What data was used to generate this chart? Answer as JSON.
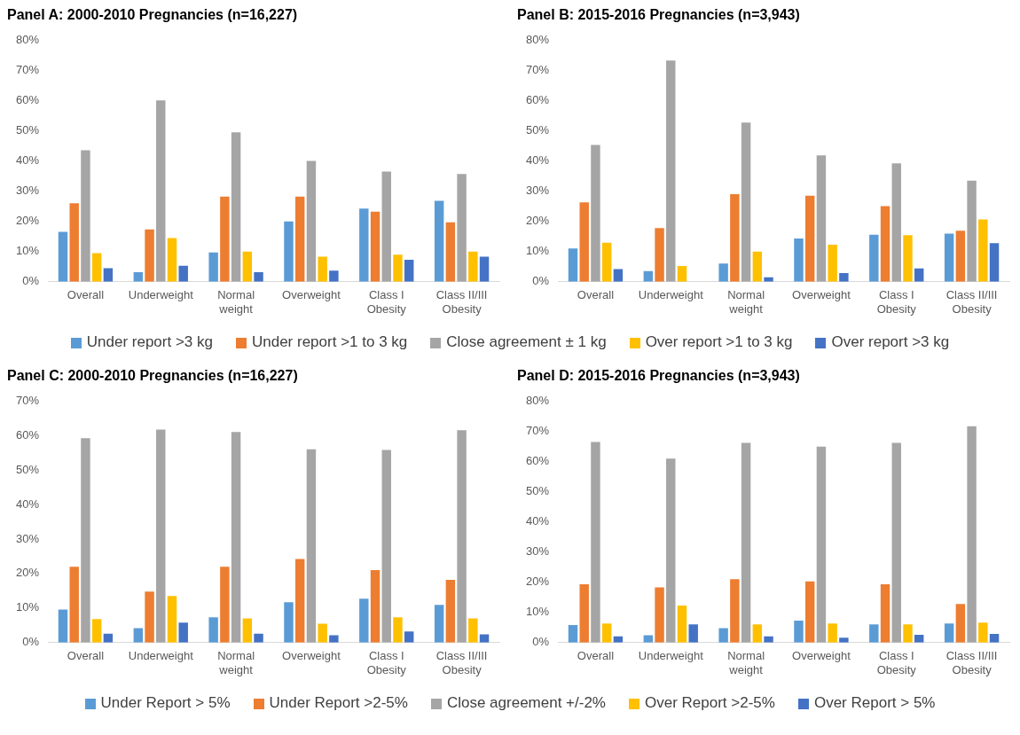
{
  "chart_data": [
    {
      "type": "bar",
      "title": "Panel A: 2000-2010 Pregnancies (n=16,227)",
      "categories": [
        "Overall",
        "Underweight",
        "Normal weight",
        "Overweight",
        "Class I Obesity",
        "Class II/III Obesity"
      ],
      "ylim": [
        0,
        80
      ],
      "yticks": [
        {
          "value": 0,
          "label": "0%"
        },
        {
          "value": 10,
          "label": "10%"
        },
        {
          "value": 20,
          "label": "20%"
        },
        {
          "value": 30,
          "label": "30%"
        },
        {
          "value": 40,
          "label": "40%"
        },
        {
          "value": 50,
          "label": "50%"
        },
        {
          "value": 60,
          "label": "60%"
        },
        {
          "value": 70,
          "label": "70%"
        },
        {
          "value": 80,
          "label": "80%"
        }
      ],
      "grid": false,
      "legend": "bottom",
      "series": [
        {
          "name": "Under report >3 kg",
          "color": "#5b9bd5",
          "values": [
            16.5,
            3.2,
            9.7,
            20,
            24.2,
            26.8
          ]
        },
        {
          "name": "Under report >1 to 3 kg",
          "color": "#ed7d31",
          "values": [
            26,
            17.3,
            28.2,
            28.2,
            23.2,
            19.7
          ]
        },
        {
          "name": "Close agreement ± 1 kg",
          "color": "#a5a5a5",
          "values": [
            43.5,
            60,
            49.5,
            40,
            36.5,
            35.7
          ]
        },
        {
          "name": "Over report >1 to 3 kg",
          "color": "#ffc000",
          "values": [
            9.5,
            14.5,
            10,
            8.3,
            9,
            10
          ]
        },
        {
          "name": "Over report >3 kg",
          "color": "#4472c4",
          "values": [
            4.5,
            5.3,
            3.2,
            3.7,
            7.3,
            8.3
          ]
        }
      ]
    },
    {
      "type": "bar",
      "title": "Panel B: 2015-2016 Pregnancies (n=3,943)",
      "categories": [
        "Overall",
        "Underweight",
        "Normal weight",
        "Overweight",
        "Class I Obesity",
        "Class II/III Obesity"
      ],
      "ylim": [
        0,
        80
      ],
      "yticks": [
        {
          "value": 0,
          "label": "0%"
        },
        {
          "value": 10,
          "label": "10%"
        },
        {
          "value": 20,
          "label": "20%"
        },
        {
          "value": 30,
          "label": "30%"
        },
        {
          "value": 40,
          "label": "40%"
        },
        {
          "value": 50,
          "label": "50%"
        },
        {
          "value": 60,
          "label": "60%"
        },
        {
          "value": 70,
          "label": "70%"
        },
        {
          "value": 80,
          "label": "80%"
        }
      ],
      "grid": false,
      "series": [
        {
          "color": "#5b9bd5",
          "values": [
            11,
            3.5,
            6,
            14.3,
            15.6,
            15.9
          ]
        },
        {
          "color": "#ed7d31",
          "values": [
            26.3,
            17.8,
            29,
            28.5,
            25,
            16.9
          ]
        },
        {
          "color": "#a5a5a5",
          "values": [
            45.3,
            73.2,
            52.7,
            41.8,
            39.2,
            33.5
          ]
        },
        {
          "color": "#ffc000",
          "values": [
            12.9,
            5.2,
            10,
            12.3,
            15.4,
            20.6
          ]
        },
        {
          "color": "#4472c4",
          "values": [
            4.2,
            0,
            1.5,
            2.9,
            4.4,
            12.8
          ]
        }
      ]
    },
    {
      "type": "bar",
      "title": "Panel C: 2000-2010 Pregnancies (n=16,227)",
      "categories": [
        "Overall",
        "Underweight",
        "Normal weight",
        "Overweight",
        "Class I Obesity",
        "Class II/III Obesity"
      ],
      "ylim": [
        0,
        70
      ],
      "yticks": [
        {
          "value": 0,
          "label": "0%"
        },
        {
          "value": 10,
          "label": "10%"
        },
        {
          "value": 20,
          "label": "20%"
        },
        {
          "value": 30,
          "label": "30%"
        },
        {
          "value": 40,
          "label": "40%"
        },
        {
          "value": 50,
          "label": "50%"
        },
        {
          "value": 60,
          "label": "60%"
        },
        {
          "value": 70,
          "label": "70%"
        }
      ],
      "grid": false,
      "legend": "bottom",
      "series": [
        {
          "name": "Under Report > 5%",
          "color": "#5b9bd5",
          "values": [
            9.6,
            4.2,
            7.3,
            11.7,
            12.7,
            10.9
          ]
        },
        {
          "name": "Under Report >2-5%",
          "color": "#ed7d31",
          "values": [
            22,
            14.8,
            22,
            24.2,
            21,
            18.2
          ]
        },
        {
          "name": "Close agreement +/-2%",
          "color": "#a5a5a5",
          "values": [
            59.2,
            61.7,
            61,
            56,
            55.8,
            61.5
          ]
        },
        {
          "name": "Over Report >2-5%",
          "color": "#ffc000",
          "values": [
            6.8,
            13.5,
            7,
            5.5,
            7.3,
            7
          ]
        },
        {
          "name": "Over Report > 5%",
          "color": "#4472c4",
          "values": [
            2.6,
            5.8,
            2.6,
            2.1,
            3.2,
            2.4
          ]
        }
      ]
    },
    {
      "type": "bar",
      "title": "Panel D: 2015-2016 Pregnancies (n=3,943)",
      "categories": [
        "Overall",
        "Underweight",
        "Normal weight",
        "Overweight",
        "Class I Obesity",
        "Class II/III Obesity"
      ],
      "ylim": [
        0,
        80
      ],
      "yticks": [
        {
          "value": 0,
          "label": "0%"
        },
        {
          "value": 10,
          "label": "10%"
        },
        {
          "value": 20,
          "label": "20%"
        },
        {
          "value": 30,
          "label": "30%"
        },
        {
          "value": 40,
          "label": "40%"
        },
        {
          "value": 50,
          "label": "50%"
        },
        {
          "value": 60,
          "label": "60%"
        },
        {
          "value": 70,
          "label": "70%"
        },
        {
          "value": 80,
          "label": "80%"
        }
      ],
      "grid": false,
      "series": [
        {
          "color": "#5b9bd5",
          "values": [
            5.8,
            2.4,
            4.8,
            7.3,
            6,
            6.3
          ]
        },
        {
          "color": "#ed7d31",
          "values": [
            19.3,
            18.3,
            21,
            20.3,
            19.3,
            12.8
          ]
        },
        {
          "color": "#a5a5a5",
          "values": [
            66.4,
            60.9,
            66.1,
            64.9,
            66.1,
            71.6
          ]
        },
        {
          "color": "#ffc000",
          "values": [
            6.3,
            12.3,
            6,
            6.3,
            6,
            6.6
          ]
        },
        {
          "color": "#4472c4",
          "values": [
            2.1,
            6,
            2.1,
            1.6,
            2.6,
            2.9
          ]
        }
      ]
    }
  ]
}
